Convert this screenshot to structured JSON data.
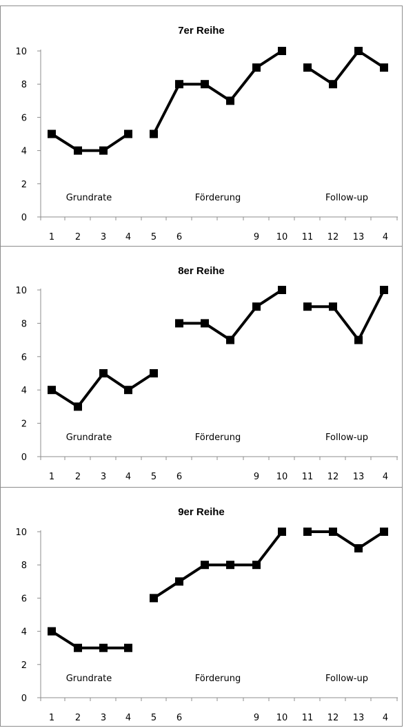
{
  "chart_data": [
    {
      "type": "line",
      "title": "7er Reihe",
      "x_tick_labels": [
        "1",
        "2",
        "3",
        "4",
        "5",
        "6",
        "9",
        "10",
        "11",
        "12",
        "13",
        "4"
      ],
      "y_ticks": [
        "0",
        "2",
        "4",
        "6",
        "8",
        "10"
      ],
      "ylim": [
        0,
        10
      ],
      "phase_labels": [
        "Grundrate",
        "Förderung",
        "Follow-up"
      ],
      "series": [
        {
          "x": [
            1,
            2,
            3,
            4
          ],
          "values": [
            5,
            4,
            4,
            5
          ]
        },
        {
          "x": [
            5,
            6,
            7,
            8,
            9,
            10
          ],
          "values": [
            5,
            8,
            8,
            7,
            9,
            10
          ]
        },
        {
          "x": [
            11,
            12,
            13,
            14
          ],
          "values": [
            9,
            8,
            10,
            9
          ]
        }
      ],
      "grid": false
    },
    {
      "type": "line",
      "title": "8er Reihe",
      "x_tick_labels": [
        "1",
        "2",
        "3",
        "4",
        "5",
        "6",
        "9",
        "10",
        "11",
        "12",
        "13",
        "4"
      ],
      "y_ticks": [
        "0",
        "2",
        "4",
        "6",
        "8",
        "10"
      ],
      "ylim": [
        0,
        10
      ],
      "phase_labels": [
        "Grundrate",
        "Förderung",
        "Follow-up"
      ],
      "series": [
        {
          "x": [
            1,
            2,
            3,
            4,
            5
          ],
          "values": [
            4,
            3,
            5,
            4,
            5
          ]
        },
        {
          "x": [
            6,
            7,
            8,
            9,
            10
          ],
          "values": [
            8,
            8,
            7,
            9,
            10
          ]
        },
        {
          "x": [
            11,
            12,
            13,
            14
          ],
          "values": [
            9,
            9,
            7,
            10
          ]
        }
      ],
      "grid": false
    },
    {
      "type": "line",
      "title": "9er Reihe",
      "x_tick_labels": [
        "1",
        "2",
        "3",
        "4",
        "5",
        "6",
        "9",
        "10",
        "11",
        "12",
        "13",
        "4"
      ],
      "y_ticks": [
        "0",
        "2",
        "4",
        "6",
        "8",
        "10"
      ],
      "ylim": [
        0,
        10
      ],
      "phase_labels": [
        "Grundrate",
        "Förderung",
        "Follow-up"
      ],
      "series": [
        {
          "x": [
            1,
            2,
            3,
            4
          ],
          "values": [
            4,
            3,
            3,
            3
          ]
        },
        {
          "x": [
            5,
            6,
            7,
            8,
            9,
            10
          ],
          "values": [
            6,
            7,
            8,
            8,
            8,
            10
          ]
        },
        {
          "x": [
            11,
            12,
            13,
            14
          ],
          "values": [
            10,
            10,
            9,
            10
          ]
        }
      ],
      "grid": false
    }
  ]
}
